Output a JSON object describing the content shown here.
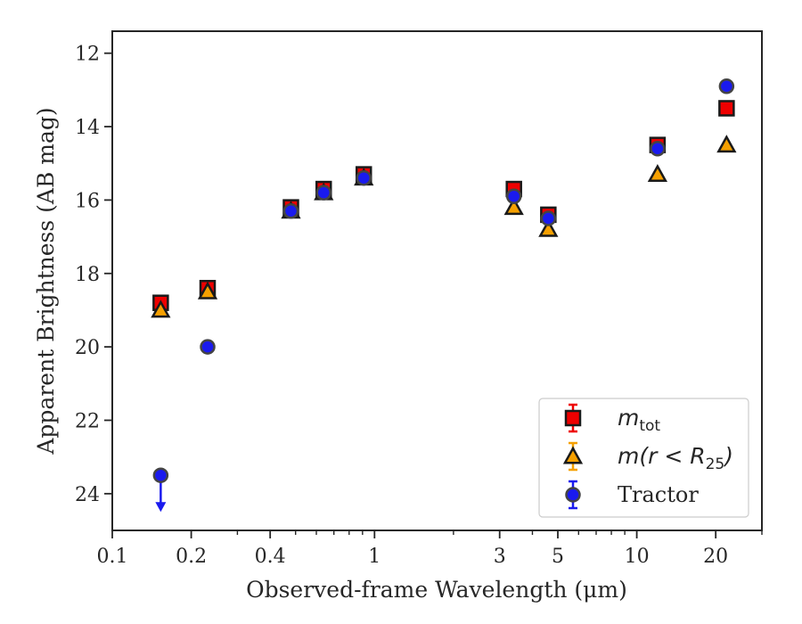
{
  "chart_data": {
    "type": "scatter",
    "xlabel": "Observed-frame Wavelength (μm)",
    "ylabel": "Apparent Brightness (AB mag)",
    "xscale": "log",
    "xlim": [
      0.1,
      30
    ],
    "ylim": [
      25,
      11.4
    ],
    "y_inverted": true,
    "x_ticks": [
      0.1,
      0.2,
      0.4,
      1,
      3,
      5,
      10,
      20
    ],
    "x_tick_labels": [
      "0.1",
      "0.2",
      "0.4",
      "1",
      "3",
      "5",
      "10",
      "20"
    ],
    "y_ticks": [
      12,
      14,
      16,
      18,
      20,
      22,
      24
    ],
    "y_tick_labels": [
      "12",
      "14",
      "16",
      "18",
      "20",
      "22",
      "24"
    ],
    "grid": false,
    "legend_position": "lower-right",
    "series": [
      {
        "key": "mtot",
        "label_main": "m",
        "label_sub": "tot",
        "marker": "square",
        "color": "#ee0000",
        "points": [
          {
            "x": 0.153,
            "y": 18.8
          },
          {
            "x": 0.231,
            "y": 18.4
          },
          {
            "x": 0.48,
            "y": 16.2
          },
          {
            "x": 0.64,
            "y": 15.7
          },
          {
            "x": 0.91,
            "y": 15.3
          },
          {
            "x": 3.4,
            "y": 15.7
          },
          {
            "x": 4.6,
            "y": 16.4
          },
          {
            "x": 12.0,
            "y": 14.5
          },
          {
            "x": 22.0,
            "y": 13.5
          }
        ]
      },
      {
        "key": "mr25",
        "label_main": "m(r < R",
        "label_sub": "25",
        "label_tail": ")",
        "marker": "triangle",
        "color": "#f5a000",
        "points": [
          {
            "x": 0.153,
            "y": 19.0
          },
          {
            "x": 0.231,
            "y": 18.5
          },
          {
            "x": 0.48,
            "y": 16.3
          },
          {
            "x": 0.64,
            "y": 15.8
          },
          {
            "x": 0.91,
            "y": 15.4
          },
          {
            "x": 3.4,
            "y": 16.2
          },
          {
            "x": 4.6,
            "y": 16.8
          },
          {
            "x": 12.0,
            "y": 15.3
          },
          {
            "x": 22.0,
            "y": 14.5
          }
        ]
      },
      {
        "key": "tractor",
        "label": "Tractor",
        "marker": "circle",
        "color": "#1a1aee",
        "points": [
          {
            "x": 0.153,
            "y": 23.5,
            "upper_limit": true
          },
          {
            "x": 0.231,
            "y": 20.0
          },
          {
            "x": 0.48,
            "y": 16.3
          },
          {
            "x": 0.64,
            "y": 15.8
          },
          {
            "x": 0.91,
            "y": 15.4
          },
          {
            "x": 3.4,
            "y": 15.9
          },
          {
            "x": 4.6,
            "y": 16.5
          },
          {
            "x": 12.0,
            "y": 14.6
          },
          {
            "x": 22.0,
            "y": 12.9
          }
        ]
      }
    ]
  }
}
